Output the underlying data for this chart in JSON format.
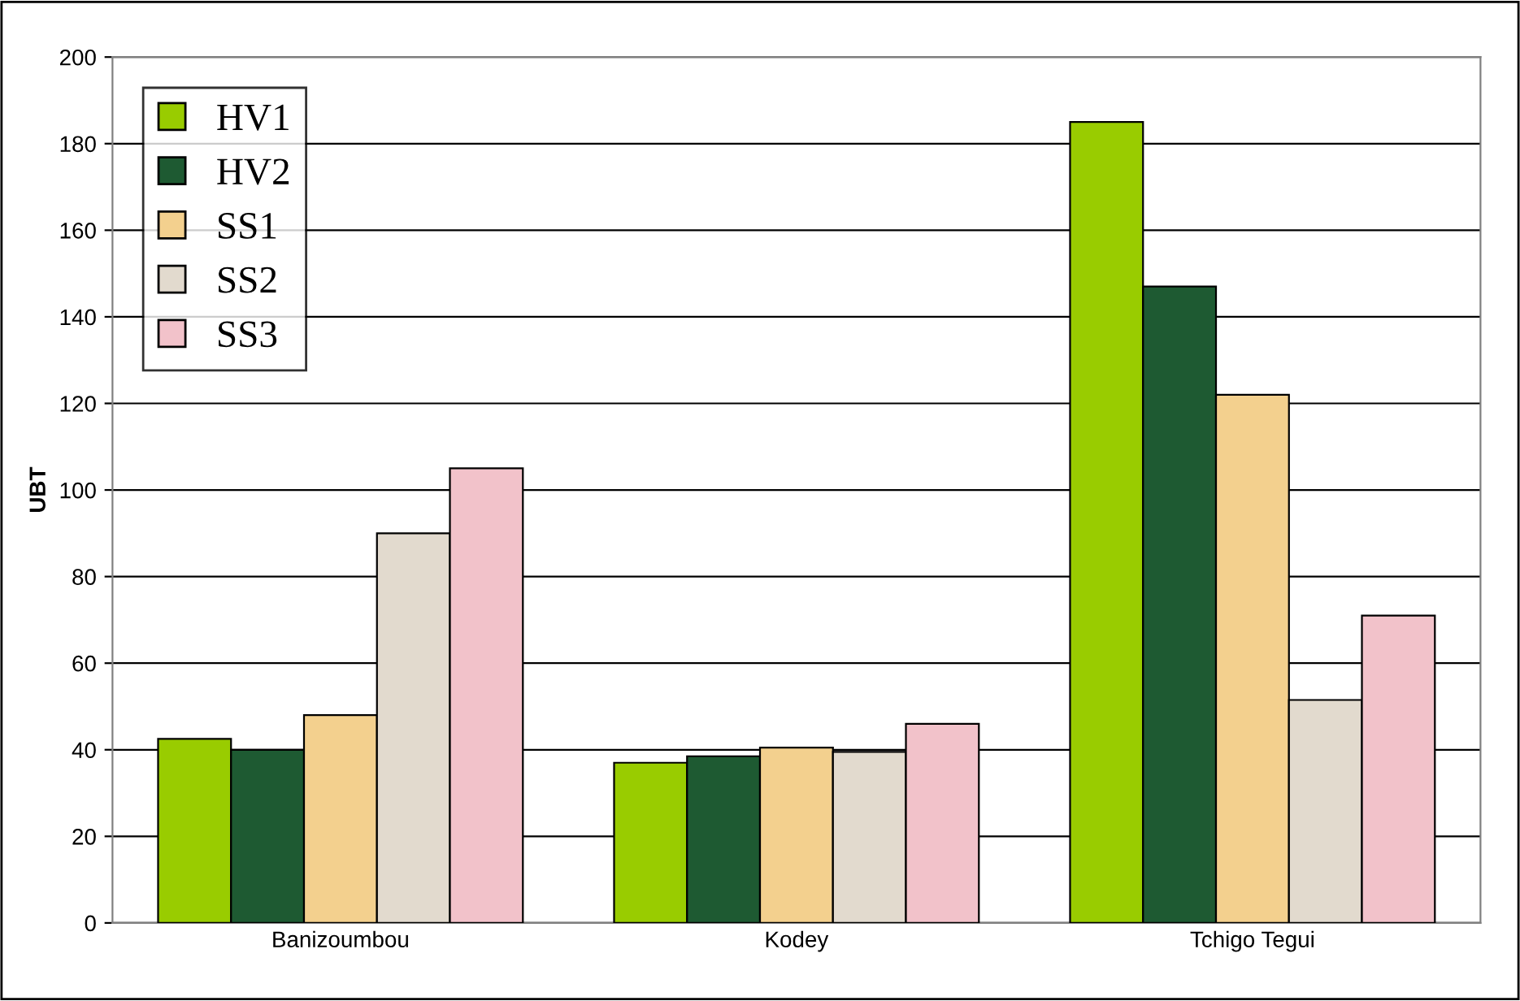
{
  "chart_data": {
    "type": "bar",
    "ylabel": "UBT",
    "categories": [
      "Banizoumbou",
      "Kodey",
      "Tchigo Tegui"
    ],
    "series": [
      {
        "name": "HV1",
        "color": "#99cc00",
        "values": [
          42.5,
          37,
          185
        ]
      },
      {
        "name": "HV2",
        "color": "#1e5a32",
        "values": [
          40,
          38.5,
          147
        ]
      },
      {
        "name": "SS1",
        "color": "#f3d08e",
        "values": [
          48,
          40.5,
          122
        ]
      },
      {
        "name": "SS2",
        "color": "#e2dace",
        "values": [
          90,
          39.5,
          51.5
        ]
      },
      {
        "name": "SS3",
        "color": "#f2c2ca",
        "values": [
          105,
          46,
          71
        ]
      }
    ],
    "ylim": [
      0,
      200
    ],
    "yticks": [
      0,
      20,
      40,
      60,
      80,
      100,
      120,
      140,
      160,
      180,
      200
    ],
    "grid": "y",
    "legend": "top left"
  }
}
